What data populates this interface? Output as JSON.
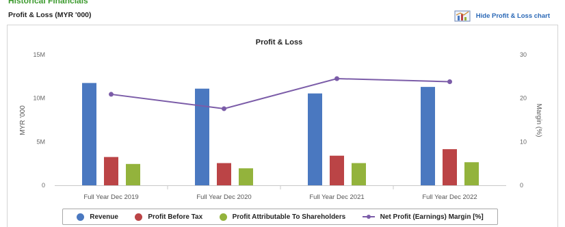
{
  "header": {
    "section_heading": "Historical Financials",
    "title": "Profit & Loss (MYR '000)",
    "hide_link": "Hide Profit & Loss chart"
  },
  "colors": {
    "revenue": "#4a78c0",
    "profit_before_tax": "#bb4446",
    "profit_attributable": "#93b33c",
    "net_margin": "#7b5ca8",
    "link": "#2a68b6",
    "heading_green": "#3c9a2e"
  },
  "icons": {
    "hide_chart": "bar-chart-icon"
  },
  "chart_data": {
    "type": "bar",
    "title": "Profit & Loss",
    "categories": [
      "Full Year Dec 2019",
      "Full Year Dec 2020",
      "Full Year Dec 2021",
      "Full Year Dec 2022"
    ],
    "ylabel": "MYR '000",
    "y2label": "Margin (%)",
    "ylim": [
      0,
      15000000
    ],
    "y2lim": [
      0,
      30
    ],
    "yticks": [
      "0",
      "5M",
      "10M",
      "15M"
    ],
    "y2ticks": [
      "0",
      "10",
      "20",
      "30"
    ],
    "grid": false,
    "legend_position": "bottom",
    "series": [
      {
        "name": "Revenue",
        "type": "bar",
        "axis": "left",
        "values": [
          11750000,
          11100000,
          10550000,
          11300000
        ]
      },
      {
        "name": "Profit Before Tax",
        "type": "bar",
        "axis": "left",
        "values": [
          3250000,
          2550000,
          3400000,
          4150000
        ]
      },
      {
        "name": "Profit Attributable To Shareholders",
        "type": "bar",
        "axis": "left",
        "values": [
          2450000,
          1950000,
          2550000,
          2650000
        ]
      },
      {
        "name": "Net Profit (Earnings) Margin [%]",
        "type": "line",
        "axis": "right",
        "values": [
          20.9,
          17.6,
          24.5,
          23.8
        ]
      }
    ]
  }
}
